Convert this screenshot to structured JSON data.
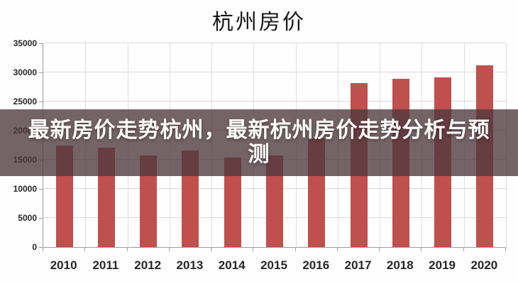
{
  "header": {
    "title": "杭州房价"
  },
  "overlay": {
    "line1": "最新房价走势杭州，最新杭州房价走势分析与预",
    "line2": "测",
    "full_text": "最新房价走势杭州，最新杭州房价走势分析与预测",
    "background_color": "#4d393d",
    "background_opacity": 0.78,
    "text_color": "#ffffff"
  },
  "chart_data": {
    "type": "bar",
    "title": "杭州房价",
    "categories": [
      "2010",
      "2011",
      "2012",
      "2013",
      "2014",
      "2015",
      "2016",
      "2017",
      "2018",
      "2019",
      "2020"
    ],
    "values": [
      17500,
      17100,
      15700,
      16550,
      15400,
      15750,
      18650,
      28200,
      28900,
      29200,
      31200
    ],
    "xlabel": "",
    "ylabel": "",
    "ylim": [
      0,
      35000
    ],
    "yticks": [
      0,
      5000,
      10000,
      15000,
      20000,
      25000,
      30000,
      35000
    ],
    "grid": "both",
    "legend": "none",
    "bar_color": "#c0504d",
    "gridline_color": "#d9d9d9",
    "axis_color": "#9e9e9e",
    "tick_label_color": "#262626"
  }
}
